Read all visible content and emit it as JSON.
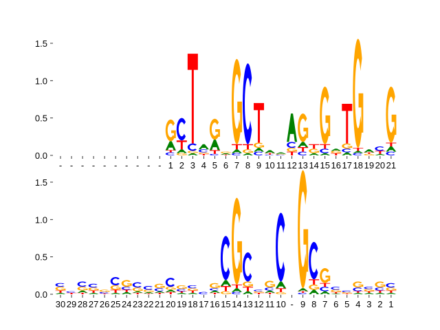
{
  "colors": {
    "A": "#008000",
    "C": "#0000ff",
    "G": "#ffa500",
    "T": "#ff0000"
  },
  "chart_data": [
    {
      "type": "sequence-logo",
      "title": "",
      "ylabel": "",
      "ylim": [
        0,
        1.7
      ],
      "yticks": [
        0,
        0.5,
        1,
        1.5
      ],
      "ytick_labels": [
        "0.0",
        "0.5",
        "1.0",
        "1.5"
      ],
      "xtick_labels": [
        "-",
        "-",
        "-",
        "-",
        "-",
        "-",
        "-",
        "-",
        "-",
        "-",
        "1",
        "2",
        "3",
        "4",
        "5",
        "6",
        "7",
        "8",
        "9",
        "10",
        "11",
        "12",
        "13",
        "14",
        "15",
        "16",
        "17",
        "18",
        "19",
        "20",
        "21"
      ],
      "columns": [
        [],
        [],
        [],
        [],
        [],
        [],
        [],
        [],
        [],
        [],
        [
          [
            "C",
            0.04
          ],
          [
            "T",
            0.03
          ],
          [
            "A",
            0.12
          ],
          [
            "G",
            0.29
          ]
        ],
        [
          [
            "G",
            0.03
          ],
          [
            "A",
            0.05
          ],
          [
            "T",
            0.12
          ],
          [
            "C",
            0.3
          ]
        ],
        [
          [
            "A",
            0.03
          ],
          [
            "G",
            0.03
          ],
          [
            "C",
            0.1
          ],
          [
            "T",
            1.2
          ]
        ],
        [
          [
            "T",
            0.02
          ],
          [
            "G",
            0.02
          ],
          [
            "C",
            0.04
          ],
          [
            "A",
            0.07
          ]
        ],
        [
          [
            "C",
            0.02
          ],
          [
            "T",
            0.05
          ],
          [
            "A",
            0.14
          ],
          [
            "G",
            0.28
          ]
        ],
        [
          [
            "T",
            0.01
          ],
          [
            "A",
            0.02
          ],
          [
            "G",
            0.02
          ]
        ],
        [
          [
            "C",
            0.03
          ],
          [
            "A",
            0.05
          ],
          [
            "T",
            0.07
          ],
          [
            "G",
            1.14
          ]
        ],
        [
          [
            "A",
            0.03
          ],
          [
            "G",
            0.05
          ],
          [
            "T",
            0.07
          ],
          [
            "C",
            1.08
          ]
        ],
        [
          [
            "C",
            0.05
          ],
          [
            "A",
            0.05
          ],
          [
            "G",
            0.07
          ],
          [
            "T",
            0.53
          ]
        ],
        [
          [
            "C",
            0.01
          ],
          [
            "T",
            0.02
          ],
          [
            "A",
            0.04
          ]
        ],
        [
          [
            "C",
            0.01
          ],
          [
            "G",
            0.01
          ],
          [
            "A",
            0.02
          ]
        ],
        [
          [
            "T",
            0.05
          ],
          [
            "G",
            0.05
          ],
          [
            "C",
            0.08
          ],
          [
            "A",
            0.38
          ]
        ],
        [
          [
            "C",
            0.05
          ],
          [
            "T",
            0.06
          ],
          [
            "A",
            0.07
          ],
          [
            "G",
            0.38
          ]
        ],
        [
          [
            "A",
            0.03
          ],
          [
            "G",
            0.06
          ],
          [
            "T",
            0.06
          ]
        ],
        [
          [
            "A",
            0.03
          ],
          [
            "C",
            0.06
          ],
          [
            "T",
            0.06
          ],
          [
            "G",
            0.77
          ]
        ],
        [
          [
            "T",
            0.03
          ],
          [
            "G",
            0.03
          ],
          [
            "A",
            0.03
          ]
        ],
        [
          [
            "A",
            0.04
          ],
          [
            "C",
            0.05
          ],
          [
            "G",
            0.07
          ],
          [
            "T",
            0.53
          ]
        ],
        [
          [
            "C",
            0.03
          ],
          [
            "A",
            0.03
          ],
          [
            "T",
            0.04
          ],
          [
            "G",
            1.46
          ]
        ],
        [
          [
            "G",
            0.02
          ],
          [
            "T",
            0.02
          ],
          [
            "A",
            0.04
          ]
        ],
        [
          [
            "A",
            0.02
          ],
          [
            "T",
            0.04
          ],
          [
            "C",
            0.06
          ]
        ],
        [
          [
            "C",
            0.05
          ],
          [
            "A",
            0.07
          ],
          [
            "T",
            0.05
          ],
          [
            "G",
            0.75
          ]
        ]
      ]
    },
    {
      "type": "sequence-logo",
      "title": "",
      "ylabel": "",
      "ylim": [
        0,
        1.7
      ],
      "yticks": [
        0,
        0.5,
        1,
        1.5
      ],
      "ytick_labels": [
        "0.0",
        "0.5",
        "1.0",
        "1.5"
      ],
      "xtick_labels": [
        "30",
        "29",
        "28",
        "27",
        "26",
        "25",
        "24",
        "23",
        "22",
        "21",
        "20",
        "19",
        "18",
        "17",
        "16",
        "15",
        "14",
        "13",
        "12",
        "11",
        "10",
        "-",
        "9",
        "8",
        "7",
        "6",
        "5",
        "4",
        "3",
        "2",
        "1"
      ],
      "columns": [
        [
          [
            "A",
            0.02
          ],
          [
            "T",
            0.03
          ],
          [
            "G",
            0.05
          ],
          [
            "C",
            0.05
          ]
        ],
        [
          [
            "T",
            0.02
          ],
          [
            "C",
            0.02
          ]
        ],
        [
          [
            "T",
            0.02
          ],
          [
            "A",
            0.03
          ],
          [
            "G",
            0.05
          ],
          [
            "C",
            0.07
          ]
        ],
        [
          [
            "A",
            0.02
          ],
          [
            "T",
            0.03
          ],
          [
            "G",
            0.04
          ],
          [
            "C",
            0.05
          ]
        ],
        [
          [
            "T",
            0.01
          ],
          [
            "C",
            0.02
          ],
          [
            "G",
            0.03
          ]
        ],
        [
          [
            "A",
            0.02
          ],
          [
            "T",
            0.04
          ],
          [
            "G",
            0.06
          ],
          [
            "C",
            0.11
          ]
        ],
        [
          [
            "A",
            0.03
          ],
          [
            "T",
            0.03
          ],
          [
            "C",
            0.04
          ],
          [
            "G",
            0.09
          ]
        ],
        [
          [
            "T",
            0.02
          ],
          [
            "A",
            0.02
          ],
          [
            "G",
            0.05
          ],
          [
            "C",
            0.07
          ]
        ],
        [
          [
            "T",
            0.01
          ],
          [
            "A",
            0.02
          ],
          [
            "G",
            0.03
          ],
          [
            "C",
            0.05
          ]
        ],
        [
          [
            "T",
            0.02
          ],
          [
            "A",
            0.02
          ],
          [
            "C",
            0.04
          ],
          [
            "G",
            0.06
          ]
        ],
        [
          [
            "T",
            0.03
          ],
          [
            "A",
            0.03
          ],
          [
            "G",
            0.04
          ],
          [
            "C",
            0.12
          ]
        ],
        [
          [
            "A",
            0.02
          ],
          [
            "T",
            0.02
          ],
          [
            "C",
            0.03
          ],
          [
            "G",
            0.05
          ]
        ],
        [
          [
            "A",
            0.02
          ],
          [
            "T",
            0.03
          ],
          [
            "G",
            0.03
          ],
          [
            "C",
            0.04
          ]
        ],
        [
          [
            "C",
            0.03
          ]
        ],
        [
          [
            "T",
            0.02
          ],
          [
            "A",
            0.03
          ],
          [
            "C",
            0.03
          ],
          [
            "G",
            0.07
          ]
        ],
        [
          [
            "G",
            0.04
          ],
          [
            "T",
            0.07
          ],
          [
            "A",
            0.08
          ],
          [
            "C",
            0.59
          ]
        ],
        [
          [
            "C",
            0.03
          ],
          [
            "A",
            0.05
          ],
          [
            "T",
            0.05
          ],
          [
            "G",
            1.16
          ]
        ],
        [
          [
            "A",
            0.04
          ],
          [
            "T",
            0.06
          ],
          [
            "G",
            0.07
          ],
          [
            "C",
            0.39
          ]
        ],
        [
          [
            "T",
            0.02
          ],
          [
            "G",
            0.02
          ],
          [
            "C",
            0.02
          ]
        ],
        [
          [
            "T",
            0.02
          ],
          [
            "A",
            0.03
          ],
          [
            "C",
            0.04
          ],
          [
            "G",
            0.09
          ]
        ],
        [
          [
            "G",
            0.03
          ],
          [
            "T",
            0.05
          ],
          [
            "A",
            0.09
          ],
          [
            "C",
            0.92
          ]
        ],
        [],
        [
          [
            "C",
            0.02
          ],
          [
            "T",
            0.02
          ],
          [
            "A",
            0.04
          ],
          [
            "G",
            1.58
          ]
        ],
        [
          [
            "A",
            0.06
          ],
          [
            "G",
            0.07
          ],
          [
            "T",
            0.07
          ],
          [
            "C",
            0.5
          ]
        ],
        [
          [
            "A",
            0.04
          ],
          [
            "C",
            0.06
          ],
          [
            "T",
            0.05
          ],
          [
            "G",
            0.2
          ]
        ],
        [
          [
            "A",
            0.01
          ],
          [
            "T",
            0.02
          ],
          [
            "G",
            0.03
          ],
          [
            "C",
            0.04
          ]
        ],
        [
          [
            "T",
            0.01
          ],
          [
            "G",
            0.02
          ],
          [
            "C",
            0.02
          ]
        ],
        [
          [
            "A",
            0.02
          ],
          [
            "T",
            0.02
          ],
          [
            "C",
            0.05
          ],
          [
            "G",
            0.08
          ]
        ],
        [
          [
            "A",
            0.02
          ],
          [
            "T",
            0.02
          ],
          [
            "G",
            0.03
          ],
          [
            "C",
            0.03
          ]
        ],
        [
          [
            "A",
            0.02
          ],
          [
            "T",
            0.03
          ],
          [
            "C",
            0.04
          ],
          [
            "G",
            0.08
          ]
        ],
        [
          [
            "A",
            0.02
          ],
          [
            "T",
            0.03
          ],
          [
            "G",
            0.04
          ],
          [
            "C",
            0.06
          ]
        ]
      ]
    }
  ]
}
